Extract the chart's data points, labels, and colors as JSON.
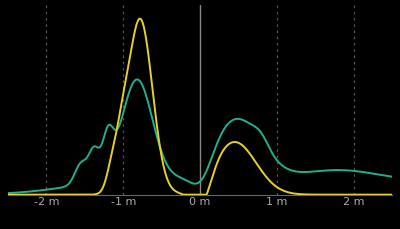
{
  "background_color": "#000000",
  "xlim": [
    -2.5,
    2.5
  ],
  "ylim": [
    0,
    1.08
  ],
  "xticks": [
    -2,
    -1,
    0,
    1,
    2
  ],
  "xtick_labels": [
    "-2 m",
    "-1 m",
    "0 m",
    "1 m",
    "2 m"
  ],
  "dotted_vlines": [
    -2,
    -1,
    1,
    2
  ],
  "solid_vline": 0,
  "cop90_color": "#e8d020",
  "tdx90_color": "#20b090",
  "axis_color": "#666666",
  "tick_color": "#aaaaaa",
  "tick_fontsize": 8,
  "vline_color": "#555555",
  "solid_vline_color": "#888888"
}
